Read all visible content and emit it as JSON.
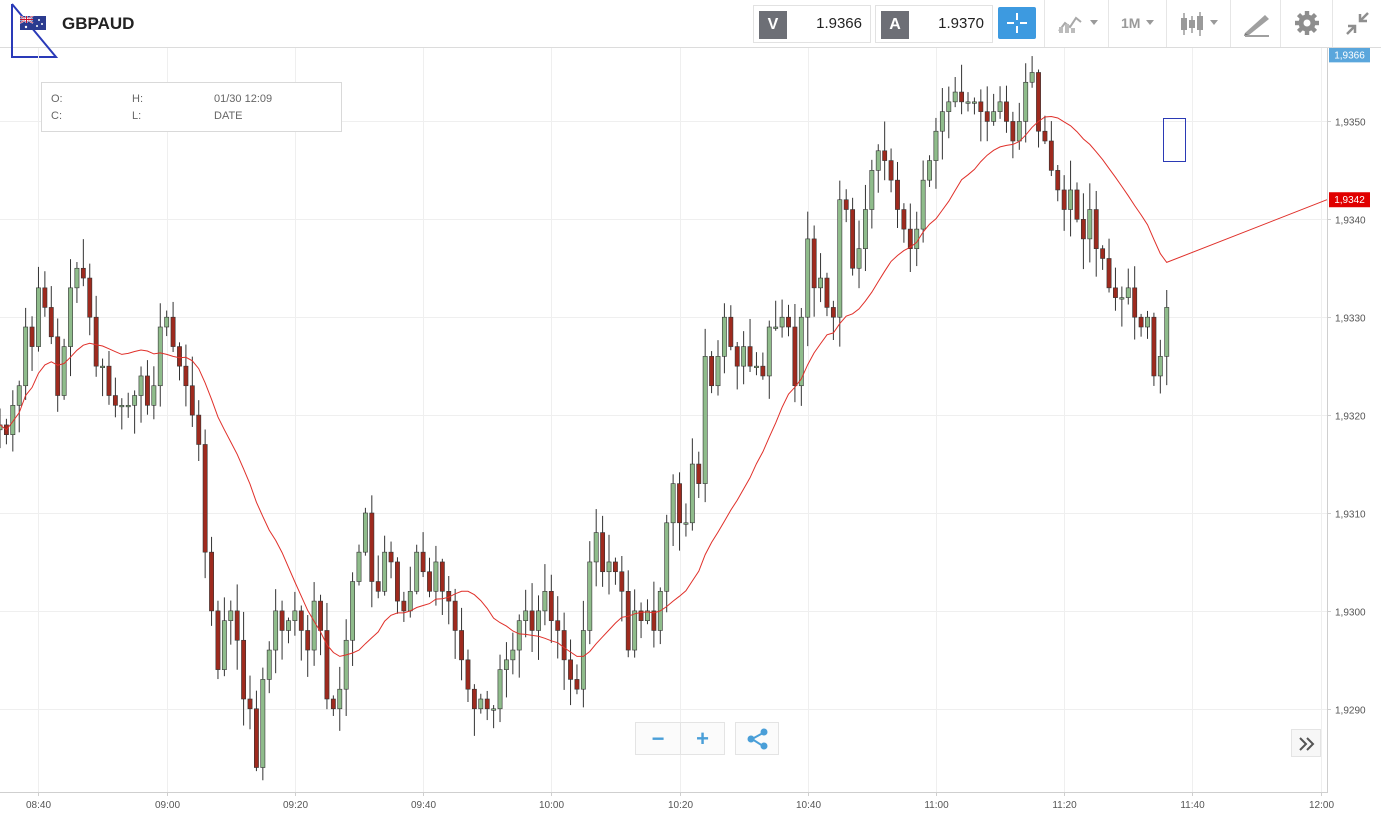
{
  "header": {
    "symbol": "GBPAUD",
    "bid_letter": "V",
    "bid": "1.9366",
    "ask_letter": "A",
    "ask": "1.9370",
    "period": "1M",
    "flag_icon": "uk-au-flag-icon"
  },
  "info_box": {
    "open_label": "O:",
    "high_label": "H:",
    "close_label": "C:",
    "low_label": "L:",
    "datetime": "01/30 12:09",
    "date_label": "DATE"
  },
  "colors": {
    "bullish": "#8fbc8b",
    "bearish": "#9e2a1e",
    "moving_average": "#e0302a",
    "accent": "#3d9ae0",
    "current_price_tag": "#5aa6dc",
    "ma_price_tag": "#e00000"
  },
  "chart_data": {
    "type": "candlestick",
    "y_axis": {
      "ticks": [
        "1,9290",
        "1,9300",
        "1,9310",
        "1,9320",
        "1,9330",
        "1,9340",
        "1,9350"
      ],
      "tick_values": [
        1.929,
        1.93,
        1.931,
        1.932,
        1.933,
        1.934,
        1.935
      ],
      "range": [
        1.92815,
        1.93575
      ],
      "current_price_label": "1,9366",
      "current_price": 1.93568,
      "ma_price_label": "1,9342",
      "ma_price": 1.9342
    },
    "x_axis": {
      "ticks": [
        "08:40",
        "09:00",
        "09:20",
        "09:40",
        "10:00",
        "10:20",
        "10:40",
        "11:00",
        "11:20",
        "11:40",
        "12:00"
      ],
      "tick_minutes": [
        520,
        540,
        560,
        580,
        600,
        620,
        640,
        660,
        680,
        700,
        720
      ],
      "range_minutes": [
        514,
        721
      ]
    },
    "candle_interval_minutes": 1,
    "first_candle_minute": 514,
    "closes": [
      1.9319,
      1.9318,
      1.9321,
      1.9323,
      1.9329,
      1.9327,
      1.9333,
      1.9331,
      1.9328,
      1.9322,
      1.9327,
      1.9333,
      1.9335,
      1.9334,
      1.933,
      1.9325,
      1.9325,
      1.9322,
      1.9321,
      1.9321,
      1.9321,
      1.9322,
      1.9324,
      1.9321,
      1.9323,
      1.9329,
      1.933,
      1.9327,
      1.9325,
      1.9323,
      1.932,
      1.9317,
      1.9306,
      1.93,
      1.9294,
      1.9299,
      1.93,
      1.9297,
      1.9291,
      1.929,
      1.9284,
      1.9293,
      1.9296,
      1.93,
      1.9298,
      1.9299,
      1.93,
      1.9298,
      1.9296,
      1.9301,
      1.9298,
      1.9291,
      1.929,
      1.9292,
      1.9297,
      1.9303,
      1.9306,
      1.931,
      1.9303,
      1.9302,
      1.9306,
      1.9305,
      1.9301,
      1.93,
      1.9302,
      1.9306,
      1.9304,
      1.9302,
      1.9305,
      1.9302,
      1.9301,
      1.9298,
      1.9295,
      1.9292,
      1.929,
      1.9291,
      1.929,
      1.929,
      1.9294,
      1.9295,
      1.9296,
      1.9299,
      1.93,
      1.9298,
      1.93,
      1.9302,
      1.9299,
      1.9298,
      1.9295,
      1.9293,
      1.9292,
      1.9298,
      1.9305,
      1.9308,
      1.9304,
      1.9305,
      1.9304,
      1.9302,
      1.9296,
      1.93,
      1.9299,
      1.93,
      1.9298,
      1.9302,
      1.9309,
      1.9313,
      1.9309,
      1.9309,
      1.9315,
      1.9313,
      1.9326,
      1.9323,
      1.9326,
      1.933,
      1.9327,
      1.9325,
      1.9327,
      1.9325,
      1.9325,
      1.9324,
      1.9329,
      1.9329,
      1.933,
      1.9329,
      1.9323,
      1.933,
      1.9338,
      1.9333,
      1.9334,
      1.9331,
      1.933,
      1.9342,
      1.9341,
      1.9335,
      1.9337,
      1.9341,
      1.9345,
      1.9347,
      1.9346,
      1.9344,
      1.9341,
      1.9339,
      1.9337,
      1.9339,
      1.9344,
      1.9346,
      1.9349,
      1.9351,
      1.9352,
      1.9353,
      1.9352,
      1.9352,
      1.9352,
      1.9351,
      1.935,
      1.9351,
      1.9352,
      1.935,
      1.9348,
      1.935,
      1.9354,
      1.9355,
      1.9349,
      1.9348,
      1.9345,
      1.9343,
      1.9341,
      1.9343,
      1.934,
      1.9338,
      1.9341,
      1.9337,
      1.9336,
      1.9333,
      1.9332,
      1.9332,
      1.9333,
      1.933,
      1.9329,
      1.933,
      1.9324,
      1.9326,
      1.9331
    ]
  },
  "controls": {
    "zoom_out_symbol": "−",
    "zoom_in_symbol": "+",
    "share_icon": "share-icon",
    "expand_icon": "double-chevron-right-icon"
  }
}
